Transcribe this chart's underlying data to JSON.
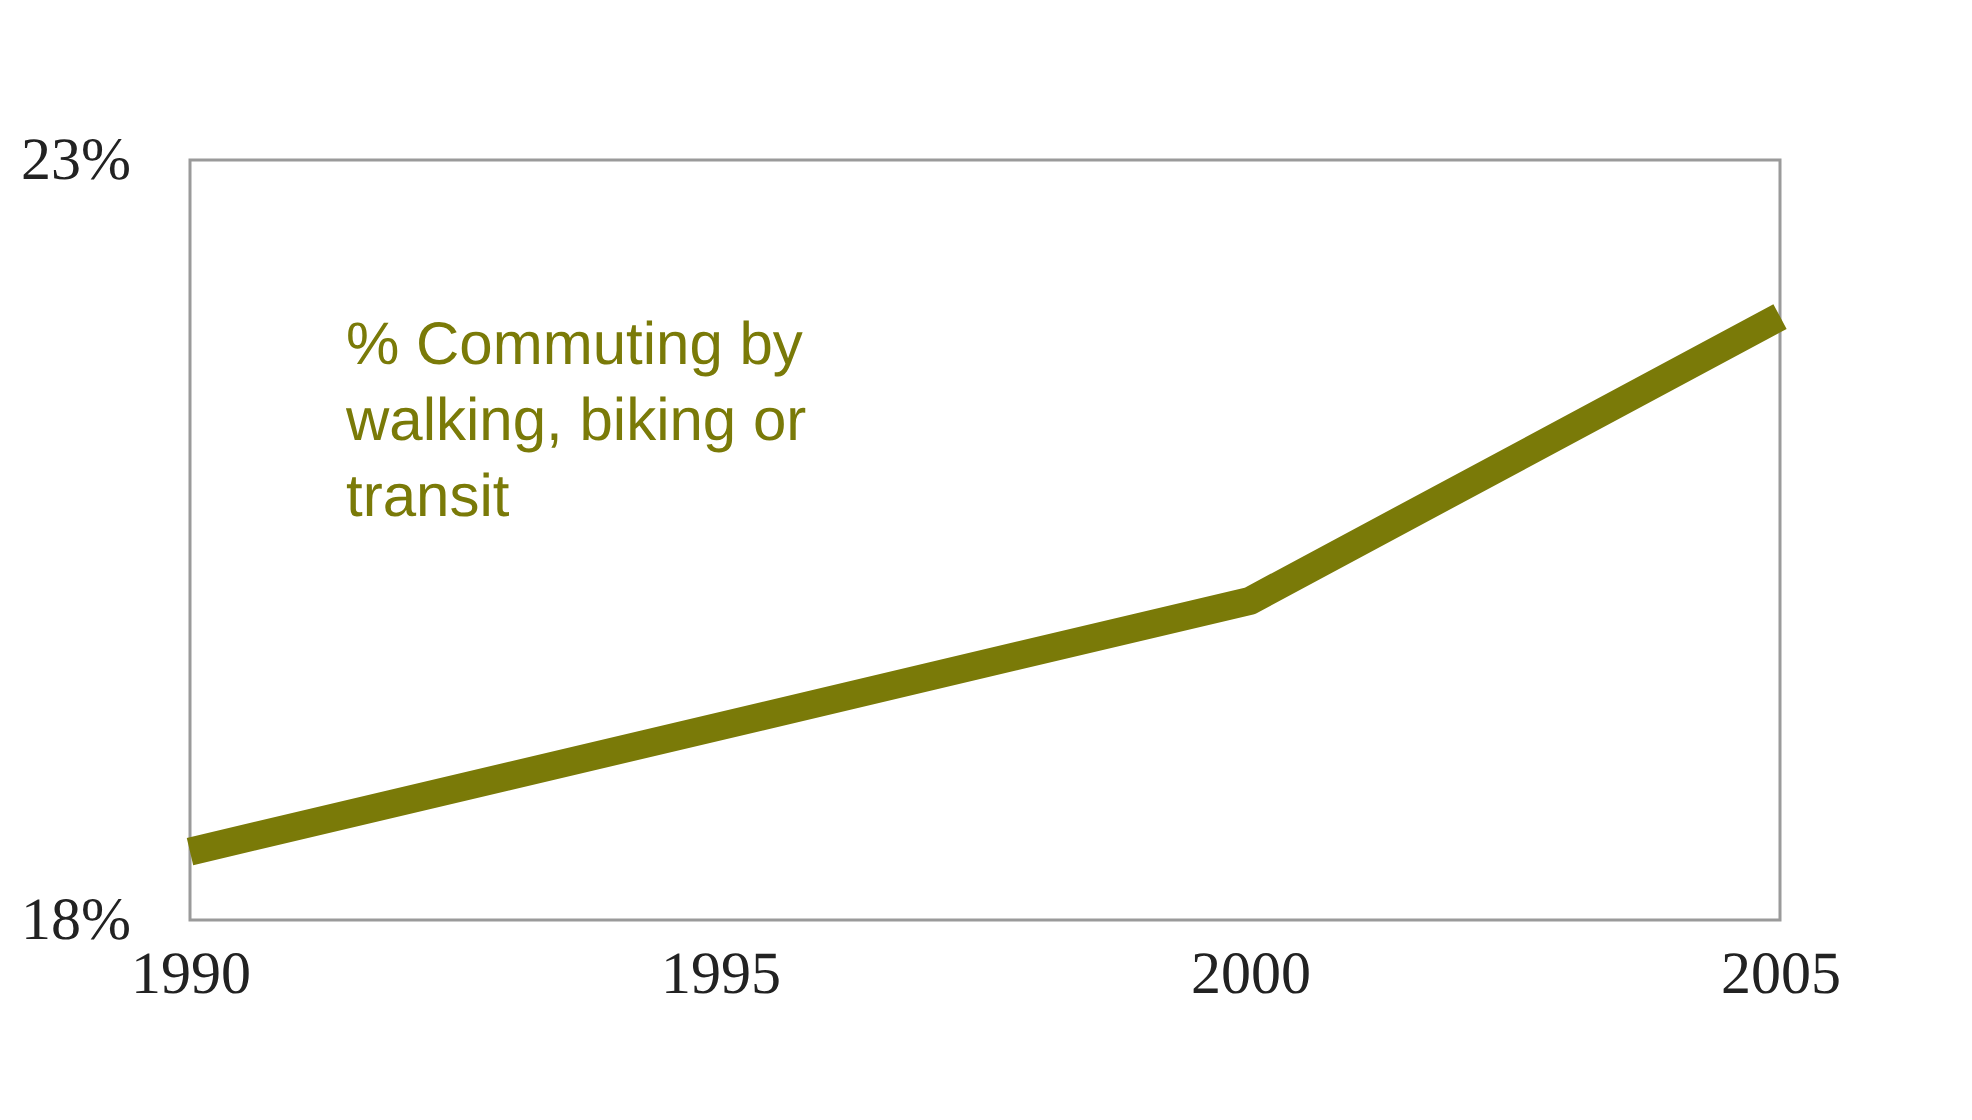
{
  "chart_data": {
    "type": "line",
    "x": [
      1990,
      2000,
      2005
    ],
    "series": [
      {
        "name": "% Commuting by walking, biking or transit",
        "color": "#7a7a08",
        "values": [
          18.45,
          20.1,
          21.97
        ]
      }
    ],
    "xlim": [
      1990,
      2005
    ],
    "xticks": [
      1990,
      1995,
      2000,
      2005
    ],
    "ylim": [
      18,
      23
    ],
    "yticks": [
      {
        "value": 18,
        "label": "18%"
      },
      {
        "value": 23,
        "label": "23%"
      }
    ],
    "grid": false,
    "legend": false,
    "line_style": "solid",
    "marker": "none"
  }
}
